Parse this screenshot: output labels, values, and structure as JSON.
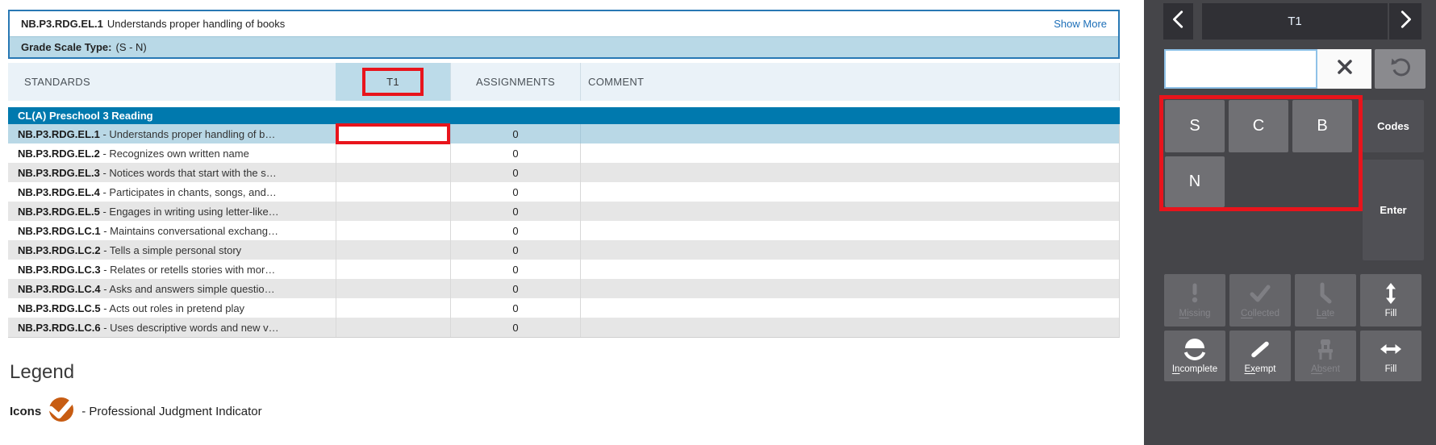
{
  "header": {
    "standard_code": "NB.P3.RDG.EL.1",
    "standard_title": "Understands proper handling of books",
    "show_more_label": "Show More",
    "grade_scale_label": "Grade Scale Type:",
    "grade_scale_value": "(S - N)"
  },
  "table": {
    "columns": [
      "STANDARDS",
      "T1",
      "ASSIGNMENTS",
      "COMMENT"
    ],
    "group_header": "CL(A) Preschool 3 Reading",
    "rows": [
      {
        "code": "NB.P3.RDG.EL.1",
        "description": "Understands proper handling of b…",
        "score": "",
        "assignments": "0",
        "comment": "",
        "selected": true
      },
      {
        "code": "NB.P3.RDG.EL.2",
        "description": "Recognizes own written name",
        "score": "",
        "assignments": "0",
        "comment": "",
        "selected": false
      },
      {
        "code": "NB.P3.RDG.EL.3",
        "description": "Notices words that start with the s…",
        "score": "",
        "assignments": "0",
        "comment": "",
        "selected": false
      },
      {
        "code": "NB.P3.RDG.EL.4",
        "description": "Participates in chants, songs, and…",
        "score": "",
        "assignments": "0",
        "comment": "",
        "selected": false
      },
      {
        "code": "NB.P3.RDG.EL.5",
        "description": "Engages in writing using letter-like…",
        "score": "",
        "assignments": "0",
        "comment": "",
        "selected": false
      },
      {
        "code": "NB.P3.RDG.LC.1",
        "description": "Maintains conversational exchang…",
        "score": "",
        "assignments": "0",
        "comment": "",
        "selected": false
      },
      {
        "code": "NB.P3.RDG.LC.2",
        "description": "Tells a simple personal story",
        "score": "",
        "assignments": "0",
        "comment": "",
        "selected": false
      },
      {
        "code": "NB.P3.RDG.LC.3",
        "description": "Relates or retells stories with mor…",
        "score": "",
        "assignments": "0",
        "comment": "",
        "selected": false
      },
      {
        "code": "NB.P3.RDG.LC.4",
        "description": "Asks and answers simple questio…",
        "score": "",
        "assignments": "0",
        "comment": "",
        "selected": false
      },
      {
        "code": "NB.P3.RDG.LC.5",
        "description": "Acts out roles in pretend play",
        "score": "",
        "assignments": "0",
        "comment": "",
        "selected": false
      },
      {
        "code": "NB.P3.RDG.LC.6",
        "description": "Uses descriptive words and new v…",
        "score": "",
        "assignments": "0",
        "comment": "",
        "selected": false
      }
    ]
  },
  "legend": {
    "title": "Legend",
    "icons_label": "Icons",
    "pji_text": "- Professional Judgment Indicator"
  },
  "score_panel": {
    "term_label": "T1",
    "input_value": "",
    "keys": [
      "S",
      "C",
      "B",
      "N"
    ],
    "codes_label": "Codes",
    "enter_label": "Enter",
    "tools": [
      {
        "name": "missing-button",
        "label": "Missing",
        "underline": "Mi",
        "enabled": false,
        "icon": "exclamation-icon"
      },
      {
        "name": "collected-button",
        "label": "Collected",
        "underline": "Co",
        "enabled": false,
        "icon": "checkmark-icon"
      },
      {
        "name": "late-button",
        "label": "Late",
        "underline": "La",
        "enabled": false,
        "icon": "clock-hands-icon"
      },
      {
        "name": "fill-vertical-button",
        "label": "Fill",
        "underline": "",
        "enabled": true,
        "icon": "arrow-vertical-icon"
      },
      {
        "name": "incomplete-button",
        "label": "Incomplete",
        "underline": "In",
        "enabled": true,
        "icon": "incomplete-circle-icon"
      },
      {
        "name": "exempt-button",
        "label": "Exempt",
        "underline": "Ex",
        "enabled": true,
        "icon": "slash-icon"
      },
      {
        "name": "absent-button",
        "label": "Absent",
        "underline": "Ab",
        "enabled": false,
        "icon": "chair-icon"
      },
      {
        "name": "fill-horizontal-button",
        "label": "Fill",
        "underline": "",
        "enabled": true,
        "icon": "arrow-horizontal-icon"
      }
    ]
  },
  "colors": {
    "accent_red": "#e8141c",
    "group_blue": "#0079ae",
    "selected_row": "#b9d8e6",
    "scale_bar": "#b9d9e7",
    "link_blue": "#1d6fb8",
    "pji_orange": "#c75c12",
    "panel_bg": "#454549"
  }
}
